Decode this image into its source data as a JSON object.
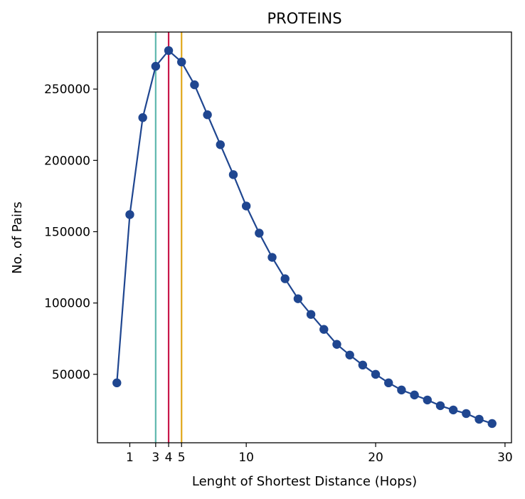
{
  "chart_data": {
    "type": "line",
    "title": "PROTEINS",
    "xlabel": "Lenght of Shortest Distance (Hops)",
    "ylabel": "No. of Pairs",
    "xlim": [
      -1.5,
      30.5
    ],
    "ylim": [
      2000,
      290000
    ],
    "x_ticks": [
      1,
      3,
      4,
      5,
      10,
      20,
      30
    ],
    "y_ticks": [
      50000,
      100000,
      150000,
      200000,
      250000
    ],
    "grid": false,
    "series": [
      {
        "color": "#1f4690",
        "marker": "circle",
        "x": [
          0,
          1,
          2,
          3,
          4,
          5,
          6,
          7,
          8,
          9,
          10,
          11,
          12,
          13,
          14,
          15,
          16,
          17,
          18,
          19,
          20,
          21,
          22,
          23,
          24,
          25,
          26,
          27,
          28,
          29
        ],
        "y": [
          44000,
          162000,
          230000,
          266000,
          277000,
          269000,
          253000,
          232000,
          211000,
          190000,
          168000,
          149000,
          132000,
          117000,
          103000,
          92000,
          81500,
          71000,
          63500,
          56500,
          50000,
          44000,
          39000,
          35500,
          32000,
          28000,
          25000,
          22500,
          18500,
          15500
        ]
      }
    ],
    "vertical_lines": [
      {
        "x": 3,
        "color": "#5fb8ad"
      },
      {
        "x": 4,
        "color": "#c8174a"
      },
      {
        "x": 5,
        "color": "#e0a81c"
      }
    ]
  }
}
